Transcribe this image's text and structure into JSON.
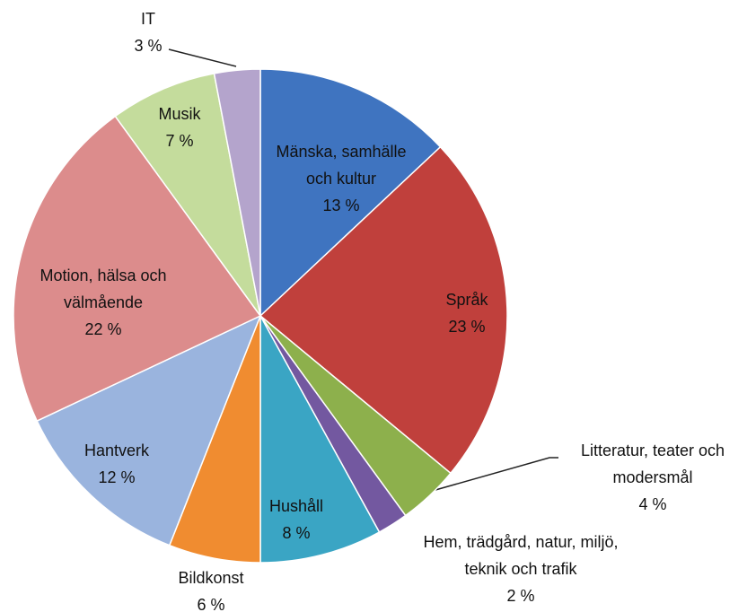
{
  "chart_data": {
    "type": "pie",
    "categories": [
      "Mänska, samhälle och kultur",
      "Språk",
      "Litteratur, teater och modersmål",
      "Hem, trädgård, natur, miljö, teknik och trafik",
      "Hushåll",
      "Bildkonst",
      "Hantverk",
      "Motion, hälsa och välmående",
      "Musik",
      "IT"
    ],
    "values": [
      13,
      23,
      4,
      2,
      8,
      6,
      12,
      22,
      7,
      3
    ],
    "value_labels": [
      "13 %",
      "23 %",
      "4 %",
      "2 %",
      "8 %",
      "6 %",
      "12 %",
      "22 %",
      "7 %",
      "3 %"
    ],
    "colors": [
      "#3f74c0",
      "#c0403c",
      "#8db04c",
      "#7358a0",
      "#3aa5c4",
      "#f08c30",
      "#9ab4de",
      "#dc8c8c",
      "#c4dc9c",
      "#b4a4cc"
    ]
  }
}
